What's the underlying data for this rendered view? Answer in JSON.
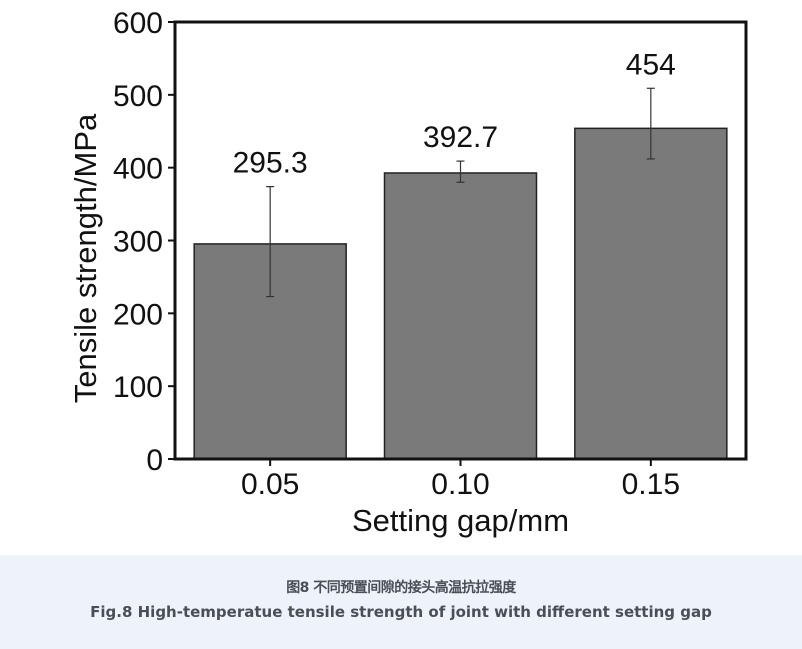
{
  "chart_data": {
    "type": "bar",
    "categories": [
      "0.05",
      "0.10",
      "0.15"
    ],
    "values": [
      295.3,
      392.7,
      454
    ],
    "value_labels": [
      "295.3",
      "392.7",
      "454"
    ],
    "error_bars": [
      {
        "low": 223,
        "high": 374
      },
      {
        "low": 380,
        "high": 409
      },
      {
        "low": 412,
        "high": 509
      }
    ],
    "xlabel": "Setting gap/mm",
    "ylabel": "Tensile strength/MPa",
    "ylim": [
      0,
      600
    ],
    "yticks": [
      "0",
      "100",
      "200",
      "300",
      "400",
      "500",
      "600"
    ],
    "grid": false,
    "legend": "none",
    "bar_color": "#7a7a7a",
    "bar_edge_color": "#222222"
  },
  "caption": {
    "chinese": "图8 不同预置间隙的接头高温抗拉强度",
    "english": "Fig.8 High-temperatue tensile strength of joint with different setting gap"
  }
}
